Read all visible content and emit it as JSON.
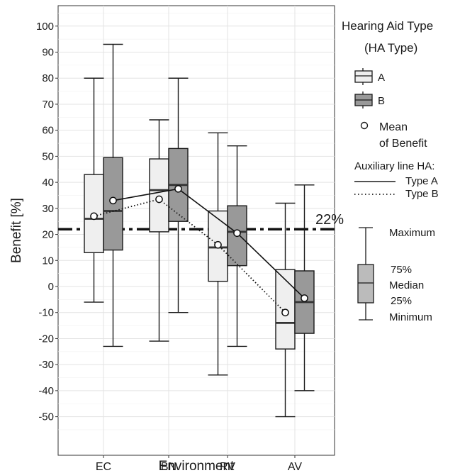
{
  "chart_data": {
    "type": "box",
    "xlabel": "Environment",
    "ylabel": "Benefit [%]",
    "ylim": [
      -55,
      105
    ],
    "yticks": [
      -50,
      -40,
      -30,
      -20,
      -10,
      0,
      10,
      20,
      30,
      40,
      50,
      60,
      70,
      80,
      90,
      100
    ],
    "categories": [
      "EC",
      "BN",
      "RV",
      "AV"
    ],
    "grid": true,
    "legend_position": "right",
    "series": [
      {
        "name": "A",
        "color": "#efefef",
        "boxes": [
          {
            "min": -6,
            "q1": 13,
            "median": 26,
            "q3": 43,
            "max": 80,
            "mean": 27
          },
          {
            "min": -21,
            "q1": 21,
            "median": 37,
            "q3": 49,
            "max": 64,
            "mean": 33.5
          },
          {
            "min": -34,
            "q1": 2,
            "median": 15,
            "q3": 29,
            "max": 59,
            "mean": 16
          },
          {
            "min": -50,
            "q1": -24,
            "median": -14,
            "q3": 6.5,
            "max": 32,
            "mean": -10
          }
        ]
      },
      {
        "name": "B",
        "color": "#999999",
        "boxes": [
          {
            "min": -23,
            "q1": 14,
            "median": 29,
            "q3": 49.5,
            "max": 93,
            "mean": 33
          },
          {
            "min": -10,
            "q1": 25,
            "median": 39,
            "q3": 53,
            "max": 80,
            "mean": 37.5
          },
          {
            "min": -23,
            "q1": 8,
            "median": 21,
            "q3": 31,
            "max": 54,
            "mean": 20.5
          },
          {
            "min": -40,
            "q1": -18,
            "median": -6,
            "q3": 6,
            "max": 39,
            "mean": -4.5
          }
        ]
      }
    ],
    "reference_line": {
      "value": 22,
      "label": "22%"
    },
    "legend": {
      "title_line1": "Hearing Aid Type",
      "title_line2": "(HA Type)",
      "mean_label_line1": "Mean",
      "mean_label_line2": "of Benefit",
      "aux_title": "Auxiliary line HA:",
      "aux_type_a": "Type A",
      "aux_type_b": "Type B",
      "box_key": {
        "maximum": "Maximum",
        "q3": "75%",
        "median": "Median",
        "q1": "25%",
        "minimum": "Minimum"
      }
    }
  }
}
